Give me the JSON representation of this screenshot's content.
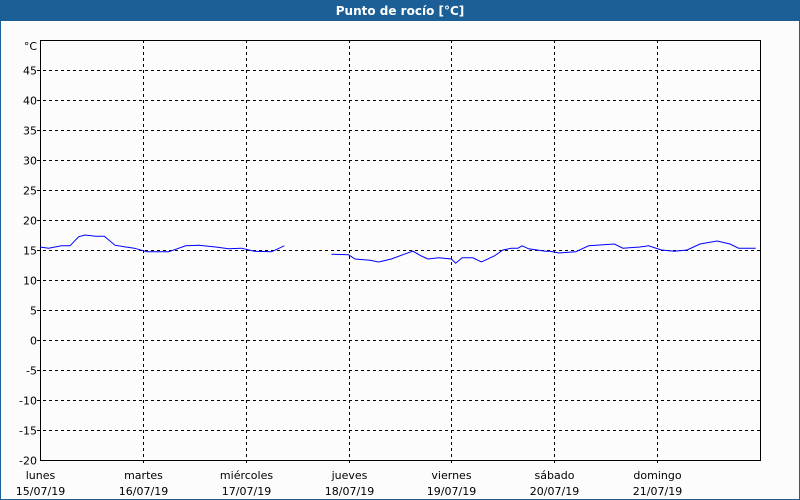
{
  "window": {
    "title": "Punto de rocío [°C]"
  },
  "chart_data": {
    "type": "line",
    "title": "Punto de rocío [°C]",
    "ylabel": "°C",
    "ylim": [
      -20,
      50
    ],
    "yticks": [
      45,
      40,
      35,
      30,
      25,
      20,
      15,
      10,
      5,
      0,
      -5,
      -10,
      -15,
      -20
    ],
    "xlim": [
      "2019-07-15T00:00",
      "2019-07-22T00:00"
    ],
    "xticks": [
      {
        "day": "lunes",
        "date": "15/07/19",
        "t": "2019-07-15T00:00"
      },
      {
        "day": "martes",
        "date": "16/07/19",
        "t": "2019-07-16T00:00"
      },
      {
        "day": "miércoles",
        "date": "17/07/19",
        "t": "2019-07-17T00:00"
      },
      {
        "day": "jueves",
        "date": "18/07/19",
        "t": "2019-07-18T00:00"
      },
      {
        "day": "viernes",
        "date": "19/07/19",
        "t": "2019-07-19T00:00"
      },
      {
        "day": "sábado",
        "date": "20/07/19",
        "t": "2019-07-20T00:00"
      },
      {
        "day": "domingo",
        "date": "21/07/19",
        "t": "2019-07-21T00:00"
      }
    ],
    "grid": true,
    "line_color": "#0000ff",
    "series": [
      {
        "segments": [
          [
            [
              "2019-07-15T00:00",
              15.5
            ],
            [
              "2019-07-15T02:00",
              15.3
            ],
            [
              "2019-07-15T05:00",
              15.7
            ],
            [
              "2019-07-15T07:00",
              15.7
            ],
            [
              "2019-07-15T09:00",
              17.2
            ],
            [
              "2019-07-15T10:30",
              17.5
            ],
            [
              "2019-07-15T13:00",
              17.3
            ],
            [
              "2019-07-15T15:00",
              17.3
            ],
            [
              "2019-07-15T17:30",
              15.8
            ],
            [
              "2019-07-15T20:00",
              15.5
            ],
            [
              "2019-07-15T22:00",
              15.3
            ],
            [
              "2019-07-16T01:00",
              14.7
            ],
            [
              "2019-07-16T06:00",
              14.7
            ],
            [
              "2019-07-16T10:00",
              15.7
            ],
            [
              "2019-07-16T13:00",
              15.8
            ],
            [
              "2019-07-16T17:00",
              15.5
            ],
            [
              "2019-07-16T20:00",
              15.2
            ],
            [
              "2019-07-16T23:00",
              15.3
            ],
            [
              "2019-07-17T02:00",
              14.8
            ],
            [
              "2019-07-17T06:00",
              14.7
            ],
            [
              "2019-07-17T09:00",
              15.7
            ]
          ],
          [
            [
              "2019-07-17T20:00",
              14.3
            ],
            [
              "2019-07-18T00:00",
              14.2
            ],
            [
              "2019-07-18T01:30",
              13.5
            ],
            [
              "2019-07-18T05:00",
              13.3
            ],
            [
              "2019-07-18T07:00",
              13.0
            ],
            [
              "2019-07-18T10:00",
              13.5
            ],
            [
              "2019-07-18T13:00",
              14.3
            ],
            [
              "2019-07-18T15:00",
              14.8
            ],
            [
              "2019-07-18T17:00",
              14.0
            ],
            [
              "2019-07-18T18:30",
              13.5
            ],
            [
              "2019-07-18T21:00",
              13.7
            ],
            [
              "2019-07-19T00:00",
              13.5
            ],
            [
              "2019-07-19T01:00",
              12.8
            ],
            [
              "2019-07-19T02:30",
              13.7
            ],
            [
              "2019-07-19T05:00",
              13.7
            ],
            [
              "2019-07-19T07:00",
              13.0
            ],
            [
              "2019-07-19T10:00",
              14.0
            ],
            [
              "2019-07-19T12:00",
              15.0
            ],
            [
              "2019-07-19T14:00",
              15.3
            ],
            [
              "2019-07-19T15:30",
              15.3
            ],
            [
              "2019-07-19T16:30",
              15.7
            ],
            [
              "2019-07-19T18:00",
              15.2
            ],
            [
              "2019-07-19T22:00",
              14.8
            ],
            [
              "2019-07-19T23:00",
              14.8
            ],
            [
              "2019-07-20T01:00",
              14.5
            ],
            [
              "2019-07-20T05:00",
              14.7
            ],
            [
              "2019-07-20T08:00",
              15.7
            ],
            [
              "2019-07-20T14:00",
              16.0
            ],
            [
              "2019-07-20T16:00",
              15.3
            ],
            [
              "2019-07-20T20:00",
              15.5
            ],
            [
              "2019-07-20T22:00",
              15.7
            ],
            [
              "2019-07-21T01:00",
              15.0
            ],
            [
              "2019-07-21T04:00",
              14.8
            ],
            [
              "2019-07-21T07:00",
              15.0
            ],
            [
              "2019-07-21T10:00",
              16.0
            ],
            [
              "2019-07-21T14:00",
              16.5
            ],
            [
              "2019-07-21T17:00",
              16.0
            ],
            [
              "2019-07-21T19:00",
              15.3
            ],
            [
              "2019-07-21T23:00",
              15.3
            ]
          ]
        ]
      }
    ]
  }
}
